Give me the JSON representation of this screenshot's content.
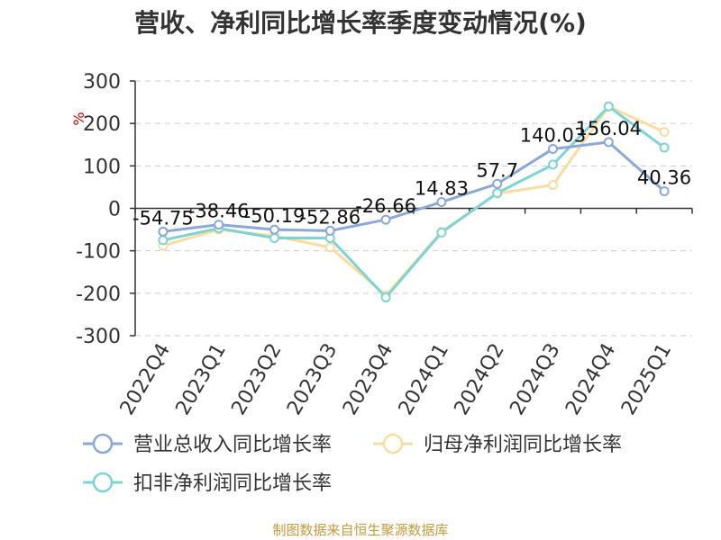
{
  "title": "营收、净利同比增长率季度变动情况(%)",
  "source": "制图数据来自恒生聚源数据库",
  "chart_data": {
    "type": "line",
    "categories": [
      "2022Q4",
      "2023Q1",
      "2023Q2",
      "2023Q3",
      "2023Q4",
      "2024Q1",
      "2024Q2",
      "2024Q3",
      "2024Q4",
      "2025Q1"
    ],
    "ylabel": "%",
    "ylim": [
      -300,
      300
    ],
    "yticks": [
      300,
      200,
      100,
      0,
      -100,
      -200,
      -300
    ],
    "grid": true,
    "legend_position": "bottom",
    "series": [
      {
        "name": "营业总收入同比增长率",
        "color": "#8aa8d8",
        "values": [
          -54.75,
          -38.46,
          -50.19,
          -52.86,
          -26.66,
          14.83,
          57.7,
          140.03,
          156.04,
          40.36
        ],
        "labels": [
          "-54.75",
          "-38.46",
          "-50.19",
          "-52.86",
          "-26.66",
          "14.83",
          "57.7",
          "140.03",
          "156.04",
          "40.36"
        ]
      },
      {
        "name": "归母净利润同比增长率",
        "color": "#f9dca0",
        "values": [
          -88,
          -50,
          -65,
          -92,
          -205,
          -55,
          35,
          55,
          240,
          180
        ]
      },
      {
        "name": "扣非净利润同比增长率",
        "color": "#7fd3d3",
        "values": [
          -75,
          -47,
          -70,
          -70,
          -210,
          -57,
          36,
          103,
          240,
          143
        ]
      }
    ]
  }
}
